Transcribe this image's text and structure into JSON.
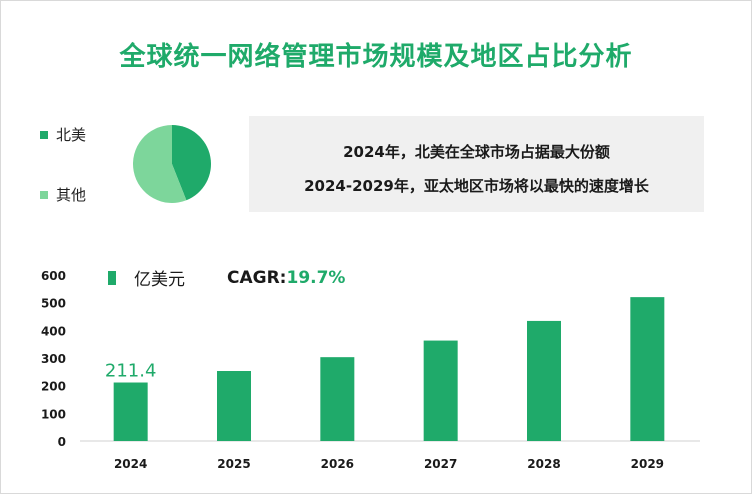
{
  "title": "全球统一网络管理市场规模及地区占比分析",
  "pie_legend": [
    {
      "label": "北美",
      "color": "#1faa6a"
    },
    {
      "label": "其他",
      "color": "#7dd69b"
    }
  ],
  "info": {
    "line1": "2024年，北美在全球市场占据最大份额",
    "line2": "2024-2029年，亚太地区市场将以最快的速度增长"
  },
  "unit_legend": {
    "label": "亿美元",
    "cagr_label": "CAGR: ",
    "cagr_value": "19.7%"
  },
  "chart_data": [
    {
      "type": "pie",
      "labels": [
        "北美",
        "其他"
      ],
      "values": [
        44,
        56
      ],
      "colors": [
        "#1faa6a",
        "#7dd69b"
      ]
    },
    {
      "type": "bar",
      "categories": [
        "2024",
        "2025",
        "2026",
        "2027",
        "2028",
        "2029"
      ],
      "values": [
        211.4,
        253,
        303,
        363,
        434,
        520
      ],
      "data_labels": [
        "211.4",
        "",
        "",
        "",
        "",
        ""
      ],
      "ylim": [
        0,
        600
      ],
      "yticks": [
        "0",
        "100",
        "200",
        "300",
        "400",
        "500",
        "600"
      ],
      "ytick_values": [
        0,
        100,
        200,
        300,
        400,
        500,
        600
      ],
      "series_name": "亿美元",
      "color": "#1faa6a",
      "label_color": "#1faa6a"
    }
  ]
}
